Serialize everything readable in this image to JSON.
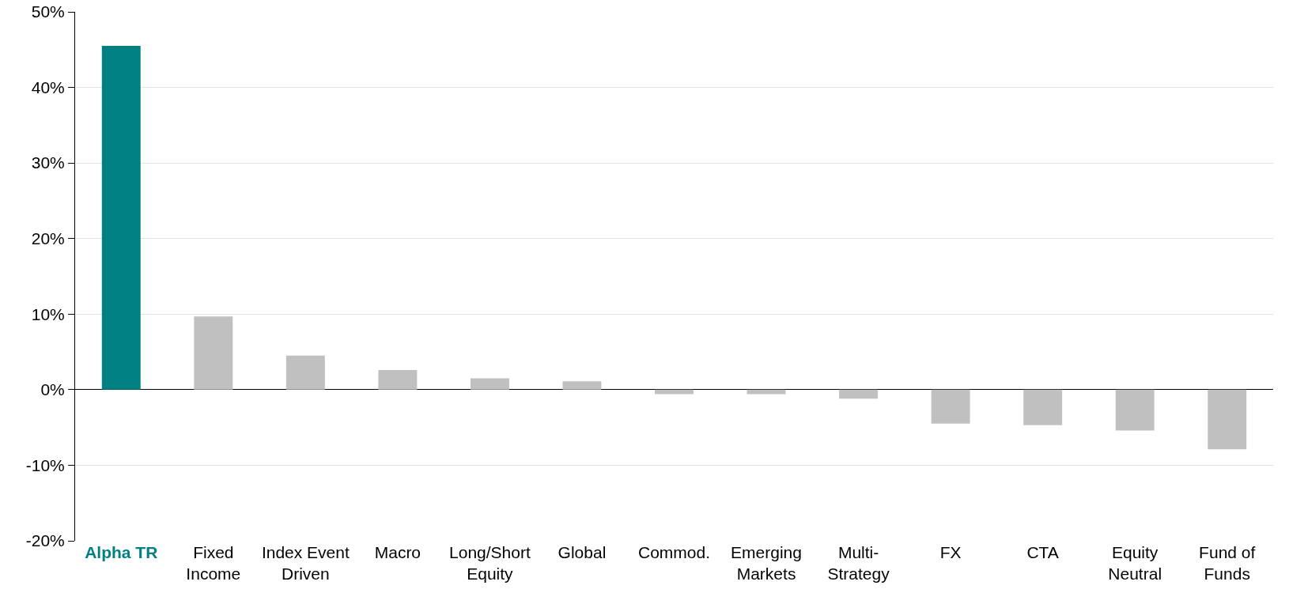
{
  "chart_data": {
    "type": "bar",
    "categories": [
      "Alpha TR",
      "Fixed Income",
      "Index Event Driven",
      "Macro",
      "Long/Short Equity",
      "Global",
      "Commod.",
      "Emerging Markets",
      "Multi-Strategy",
      "FX",
      "CTA",
      "Equity Neutral",
      "Fund of Funds"
    ],
    "values": [
      45.5,
      9.7,
      4.5,
      2.6,
      1.5,
      1.1,
      -0.6,
      -0.6,
      -1.2,
      -4.5,
      -4.7,
      -5.4,
      -7.9
    ],
    "colors": [
      "#008080",
      "#c0c0c0",
      "#c0c0c0",
      "#c0c0c0",
      "#c0c0c0",
      "#c0c0c0",
      "#c0c0c0",
      "#c0c0c0",
      "#c0c0c0",
      "#c0c0c0",
      "#c0c0c0",
      "#c0c0c0",
      "#c0c0c0"
    ],
    "ylim": [
      -20,
      50
    ],
    "yticks": [
      {
        "value": -20,
        "label": "-20%"
      },
      {
        "value": -10,
        "label": "-10%"
      },
      {
        "value": 0,
        "label": "0%"
      },
      {
        "value": 10,
        "label": "10%"
      },
      {
        "value": 20,
        "label": "20%"
      },
      {
        "value": 30,
        "label": "30%"
      },
      {
        "value": 40,
        "label": "40%"
      },
      {
        "value": 50,
        "label": "50%"
      }
    ],
    "grid": "y"
  }
}
